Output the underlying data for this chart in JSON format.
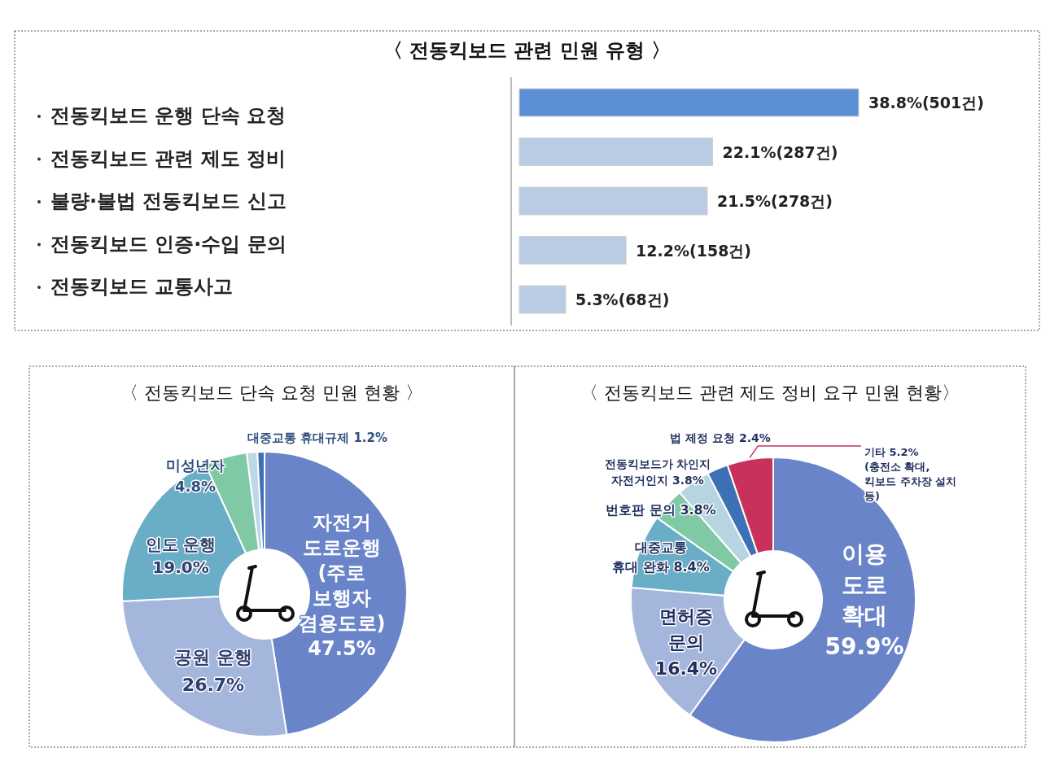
{
  "chart_data": [
    {
      "type": "bar",
      "orientation": "horizontal",
      "title": "〈 전동킥보드 관련 민원 유형 〉",
      "categories": [
        "전동킥보드 운행 단속 요청",
        "전동킥보드 관련 제도 정비",
        "불량·불법 전동킥보드 신고",
        "전동킥보드 인증·수입 문의",
        "전동킥보드 교통사고"
      ],
      "values": [
        38.8,
        22.1,
        21.5,
        12.2,
        5.3
      ],
      "value_labels": [
        "38.8%(501건)",
        "22.1%(287건)",
        "21.5%(278건)",
        "12.2%(158건)",
        "5.3%(68건)"
      ],
      "colors": [
        "#5b8fd4",
        "#b9cce4",
        "#b9cce4",
        "#b9cce4",
        "#b9cce4"
      ]
    },
    {
      "type": "donut",
      "title": "〈 전동킥보드 단속 요청 민원 현황 〉",
      "categories": [
        "자전거\n도로운행\n(주로\n보행자\n겸용도로)",
        "공원 운행",
        "인도 운행",
        "미성년자",
        "대중교통 휴대규제",
        null
      ],
      "values": [
        47.5,
        26.7,
        19.0,
        4.8,
        1.2,
        0.8
      ],
      "value_labels": [
        "47.5%",
        "26.7%",
        "19.0%",
        "4.8%",
        "1.2%",
        null
      ],
      "colors": [
        "#6a84c9",
        "#a5b6dc",
        "#6aadc6",
        "#7fcaa5",
        "#bcd8e6",
        "#3d70b5"
      ]
    },
    {
      "type": "donut",
      "title": "〈 전동킥보드 관련 제도 정비 요구 민원 현황〉",
      "categories": [
        "이용\n도로\n확대",
        "면허증\n문의",
        "대중교통\n휴대 완화",
        "번호판 문의",
        "전동킥보드가 차인지\n자전거인지",
        "법 제정 요청",
        "기타\n(충전소 확대,\n킥보드 주차장 설치\n등)"
      ],
      "values": [
        59.9,
        16.4,
        8.4,
        3.8,
        3.8,
        2.4,
        5.2
      ],
      "value_labels": [
        "59.9%",
        "16.4%",
        "8.4%",
        "3.8%",
        "3.8%",
        "2.4%",
        "5.2%"
      ],
      "colors": [
        "#6a84c9",
        "#a5b6dc",
        "#6aadc6",
        "#7fcaa5",
        "#b6d5e0",
        "#3d70b5",
        "#c8325a"
      ]
    }
  ]
}
